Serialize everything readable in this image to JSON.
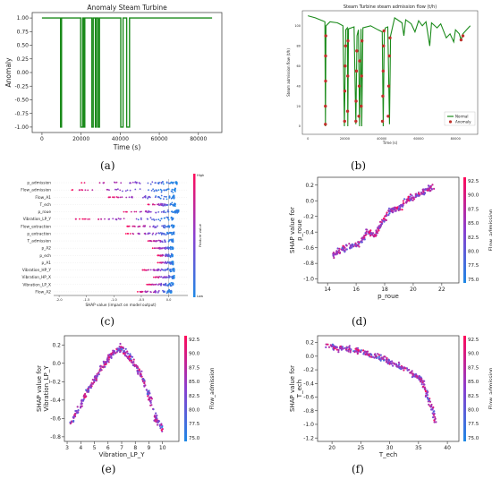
{
  "figure": {
    "captions": [
      "(a)",
      "(b)",
      "(c)",
      "(d)",
      "(e)",
      "(f)"
    ]
  },
  "chart_data": [
    {
      "id": "a",
      "type": "line",
      "title": "Anomaly  Steam Turbine",
      "xlabel": "Time (s)",
      "ylabel": "Anomaly",
      "xlim": [
        -5000,
        92000
      ],
      "ylim": [
        -1.1,
        1.1
      ],
      "xticks": [
        0,
        20000,
        40000,
        60000,
        80000
      ],
      "yticks": [
        1.0,
        0.75,
        0.5,
        0.25,
        0.0,
        -0.25,
        -0.5,
        -0.75,
        -1.0
      ],
      "series": [
        {
          "color": "#1a8a1a",
          "points": [
            [
              0,
              1
            ],
            [
              9500,
              1
            ],
            [
              9500,
              -1
            ],
            [
              10000,
              -1
            ],
            [
              10000,
              1
            ],
            [
              19800,
              1
            ],
            [
              19800,
              -1
            ],
            [
              20800,
              -1
            ],
            [
              20800,
              1
            ],
            [
              21400,
              1
            ],
            [
              21400,
              -1
            ],
            [
              21900,
              -1
            ],
            [
              21900,
              1
            ],
            [
              25500,
              1
            ],
            [
              25500,
              -1
            ],
            [
              26200,
              -1
            ],
            [
              26200,
              1
            ],
            [
              27300,
              1
            ],
            [
              27300,
              -1
            ],
            [
              27900,
              -1
            ],
            [
              27900,
              1
            ],
            [
              28700,
              1
            ],
            [
              28700,
              -1
            ],
            [
              29400,
              -1
            ],
            [
              29400,
              1
            ],
            [
              40300,
              1
            ],
            [
              40300,
              -1
            ],
            [
              41500,
              -1
            ],
            [
              41500,
              1
            ],
            [
              43300,
              1
            ],
            [
              43300,
              -1
            ],
            [
              44800,
              -1
            ],
            [
              44800,
              1
            ],
            [
              87000,
              1
            ]
          ]
        }
      ]
    },
    {
      "id": "b",
      "type": "line",
      "title": "Steam Turbine steam admission flow (t/h)",
      "xlabel": "Time (s)",
      "ylabel": "Steam admission flow (t/h)",
      "xlim": [
        -3000,
        92000
      ],
      "ylim": [
        -8,
        115
      ],
      "xticks": [
        0,
        20000,
        40000,
        60000,
        80000
      ],
      "yticks": [
        0,
        20,
        40,
        60,
        80,
        100
      ],
      "legend": {
        "position": "bottom-right",
        "entries": [
          "Normal",
          "Anomaly"
        ]
      },
      "series": [
        {
          "name": "Normal",
          "color": "#1a8a1a",
          "points": [
            [
              0,
              110
            ],
            [
              4000,
              108
            ],
            [
              8000,
              105
            ],
            [
              9200,
              104
            ],
            [
              9500,
              0
            ],
            [
              9800,
              100
            ],
            [
              12000,
              104
            ],
            [
              16000,
              103
            ],
            [
              19000,
              100
            ],
            [
              19800,
              0
            ],
            [
              20500,
              96
            ],
            [
              21400,
              98
            ],
            [
              21600,
              0
            ],
            [
              22000,
              97
            ],
            [
              25000,
              99
            ],
            [
              26000,
              2
            ],
            [
              26600,
              90
            ],
            [
              27400,
              96
            ],
            [
              28000,
              0
            ],
            [
              28800,
              97
            ],
            [
              29200,
              0
            ],
            [
              29800,
              98
            ],
            [
              34000,
              100
            ],
            [
              38000,
              96
            ],
            [
              40300,
              94
            ],
            [
              40800,
              0
            ],
            [
              41400,
              93
            ],
            [
              42000,
              98
            ],
            [
              43300,
              99
            ],
            [
              44200,
              2
            ],
            [
              44800,
              90
            ],
            [
              47000,
              108
            ],
            [
              51000,
              103
            ],
            [
              52000,
              90
            ],
            [
              53000,
              106
            ],
            [
              56000,
              102
            ],
            [
              58000,
              94
            ],
            [
              60000,
              105
            ],
            [
              62000,
              100
            ],
            [
              64000,
              104
            ],
            [
              66000,
              80
            ],
            [
              67000,
              103
            ],
            [
              70000,
              98
            ],
            [
              72000,
              102
            ],
            [
              75000,
              88
            ],
            [
              77000,
              92
            ],
            [
              79000,
              84
            ],
            [
              80000,
              96
            ],
            [
              82000,
              92
            ],
            [
              83000,
              86
            ],
            [
              84000,
              92
            ],
            [
              86000,
              96
            ],
            [
              88000,
              100
            ]
          ]
        },
        {
          "name": "Anomaly",
          "color": "#c0302a",
          "points": [
            [
              9500,
              2
            ],
            [
              9500,
              20
            ],
            [
              9600,
              45
            ],
            [
              9600,
              70
            ],
            [
              9700,
              90
            ],
            [
              19900,
              5
            ],
            [
              20000,
              35
            ],
            [
              20200,
              60
            ],
            [
              20400,
              80
            ],
            [
              21500,
              15
            ],
            [
              21600,
              50
            ],
            [
              21700,
              85
            ],
            [
              26000,
              5
            ],
            [
              26100,
              25
            ],
            [
              26300,
              55
            ],
            [
              26500,
              75
            ],
            [
              27600,
              10
            ],
            [
              27800,
              40
            ],
            [
              28000,
              65
            ],
            [
              28900,
              20
            ],
            [
              29100,
              50
            ],
            [
              29300,
              85
            ],
            [
              40400,
              5
            ],
            [
              40600,
              30
            ],
            [
              40800,
              55
            ],
            [
              41000,
              80
            ],
            [
              41200,
              95
            ],
            [
              43500,
              10
            ],
            [
              43800,
              40
            ],
            [
              44100,
              70
            ],
            [
              44500,
              88
            ],
            [
              83000,
              86
            ],
            [
              84000,
              90
            ]
          ]
        }
      ]
    },
    {
      "id": "c",
      "type": "scatter",
      "xlabel": "SHAP value (impact on model output)",
      "colorbar_label": "Feature value",
      "colorbar_ends": [
        "High",
        "Low"
      ],
      "xlim": [
        -2.1,
        0.35
      ],
      "xticks": [
        -2.0,
        -1.5,
        -1.0,
        -0.5,
        0.0
      ],
      "features": [
        "p_admission",
        "Flow_admission",
        "Flow_A1",
        "T_ech",
        "p_roue",
        "Vibration_LP_Y",
        "Flow_extraction",
        "p_extraction",
        "T_admission",
        "p_A2",
        "p_ech",
        "p_A1",
        "Vibration_HP_Y",
        "Vibration_HP_X",
        "Vibration_LP_X",
        "Flow_A2"
      ],
      "spread_min": [
        -1.6,
        -1.9,
        -1.2,
        -0.4,
        -0.9,
        -1.7,
        -0.8,
        -0.8,
        -0.4,
        -0.3,
        -0.2,
        -0.2,
        -0.5,
        -0.3,
        -0.4,
        -0.6
      ],
      "spread_max": [
        0.15,
        0.12,
        0.1,
        0.12,
        0.18,
        0.08,
        0.1,
        0.1,
        0.08,
        0.08,
        0.07,
        0.08,
        0.1,
        0.1,
        0.08,
        0.05
      ]
    },
    {
      "id": "d",
      "type": "scatter",
      "xlabel": "p_roue",
      "ylabel": "SHAP value for\np_roue",
      "colorbar_label": "Flow_admission",
      "xlim": [
        13.3,
        23.2
      ],
      "ylim": [
        -1.05,
        0.3
      ],
      "xticks": [
        14,
        16,
        18,
        20,
        22
      ],
      "yticks": [
        0.2,
        0.0,
        -0.2,
        -0.4,
        -0.6,
        -0.8,
        -1.0
      ],
      "colorbar_ticks": [
        92.5,
        90.0,
        87.5,
        85.0,
        82.5,
        80.0,
        77.5,
        75.0
      ],
      "curve": [
        [
          14.3,
          -0.7
        ],
        [
          15.0,
          -0.62
        ],
        [
          15.6,
          -0.58
        ],
        [
          16.2,
          -0.55
        ],
        [
          16.8,
          -0.4
        ],
        [
          17.3,
          -0.45
        ],
        [
          17.8,
          -0.28
        ],
        [
          18.4,
          -0.12
        ],
        [
          19.0,
          -0.1
        ],
        [
          19.6,
          0.02
        ],
        [
          20.2,
          0.06
        ],
        [
          20.8,
          0.12
        ],
        [
          21.4,
          0.18
        ]
      ]
    },
    {
      "id": "e",
      "type": "scatter",
      "xlabel": "Vibration_LP_Y",
      "ylabel": "SHAP value for\nVibration_LP_Y",
      "colorbar_label": "Flow_admission",
      "xlim": [
        2.8,
        11.2
      ],
      "ylim": [
        -0.85,
        0.3
      ],
      "xticks": [
        3,
        4,
        5,
        6,
        7,
        8,
        9,
        10
      ],
      "yticks": [
        0.2,
        0.0,
        -0.2,
        -0.4,
        -0.6,
        -0.8
      ],
      "colorbar_ticks": [
        92.5,
        90.0,
        87.5,
        85.0,
        82.5,
        80.0,
        77.5,
        75.0
      ],
      "curve": [
        [
          3.3,
          -0.65
        ],
        [
          4.0,
          -0.45
        ],
        [
          4.5,
          -0.3
        ],
        [
          5.0,
          -0.18
        ],
        [
          5.5,
          -0.06
        ],
        [
          6.0,
          0.05
        ],
        [
          6.5,
          0.14
        ],
        [
          7.0,
          0.16
        ],
        [
          7.5,
          0.08
        ],
        [
          8.0,
          -0.02
        ],
        [
          8.5,
          -0.15
        ],
        [
          9.0,
          -0.35
        ],
        [
          9.5,
          -0.6
        ],
        [
          10.0,
          -0.72
        ]
      ]
    },
    {
      "id": "f",
      "type": "scatter",
      "xlabel": "T_ech",
      "ylabel": "SHAP value for\nT_ech",
      "colorbar_label": "Flow_admission",
      "xlim": [
        17.5,
        42
      ],
      "ylim": [
        -1.25,
        0.3
      ],
      "xticks": [
        20,
        25,
        30,
        35,
        40
      ],
      "yticks": [
        0.2,
        0.0,
        -0.2,
        -0.4,
        -0.6,
        -0.8,
        -1.0,
        -1.2
      ],
      "colorbar_ticks": [
        92.5,
        90.0,
        87.5,
        85.0,
        82.5,
        80.0,
        77.5,
        75.0
      ],
      "curve": [
        [
          19,
          0.15
        ],
        [
          21,
          0.12
        ],
        [
          23,
          0.1
        ],
        [
          25,
          0.07
        ],
        [
          27,
          0.02
        ],
        [
          29,
          -0.05
        ],
        [
          31,
          -0.12
        ],
        [
          33,
          -0.2
        ],
        [
          35,
          -0.3
        ],
        [
          36,
          -0.45
        ],
        [
          37,
          -0.7
        ],
        [
          38,
          -0.95
        ]
      ]
    }
  ]
}
